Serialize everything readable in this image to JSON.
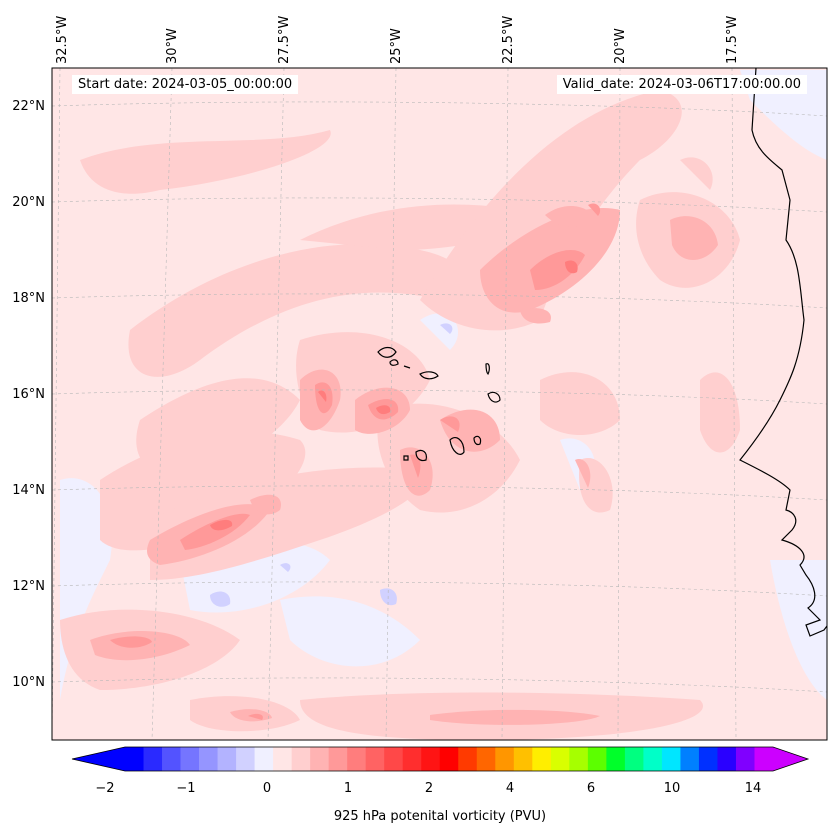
{
  "map": {
    "start_date": "Start date: 2024-03-05_00:00:00",
    "valid_date": "Valid_date: 2024-03-06T17:00:00.00",
    "longitude_labels": [
      "32.5°W",
      "30°W",
      "27.5°W",
      "25°W",
      "22.5°W",
      "20°W",
      "17.5°W"
    ],
    "latitude_labels": [
      "22°N",
      "20°N",
      "18°N",
      "16°N",
      "14°N",
      "12°N",
      "10°N"
    ],
    "variable": "925 hPa potential vorticity",
    "units": "PVU"
  },
  "colorbar": {
    "label": "925 hPa potenital vorticity (PVU)",
    "ticks": [
      "−2",
      "−1",
      "0",
      "1",
      "2",
      "4",
      "6",
      "10",
      "14"
    ],
    "colors": [
      "#0000ff",
      "#2a2aff",
      "#5353ff",
      "#7575ff",
      "#9595ff",
      "#b3b3ff",
      "#d1d1ff",
      "#f0f0ff",
      "#ffe6e6",
      "#ffcfcf",
      "#ffb3b3",
      "#ff9999",
      "#ff7d7d",
      "#ff6363",
      "#ff4848",
      "#ff2e2e",
      "#ff1414",
      "#ff0000",
      "#ff3a00",
      "#ff6600",
      "#ff9600",
      "#ffc000",
      "#ffee00",
      "#d9ff00",
      "#a6ff00",
      "#5cff00",
      "#00ff2a",
      "#00ff80",
      "#00ffc8",
      "#00e6ff",
      "#0080ff",
      "#0030ff",
      "#2a00ff",
      "#8000ff",
      "#cc00ff"
    ],
    "under_color": "#0000ff",
    "over_color": "#cc00ff"
  }
}
